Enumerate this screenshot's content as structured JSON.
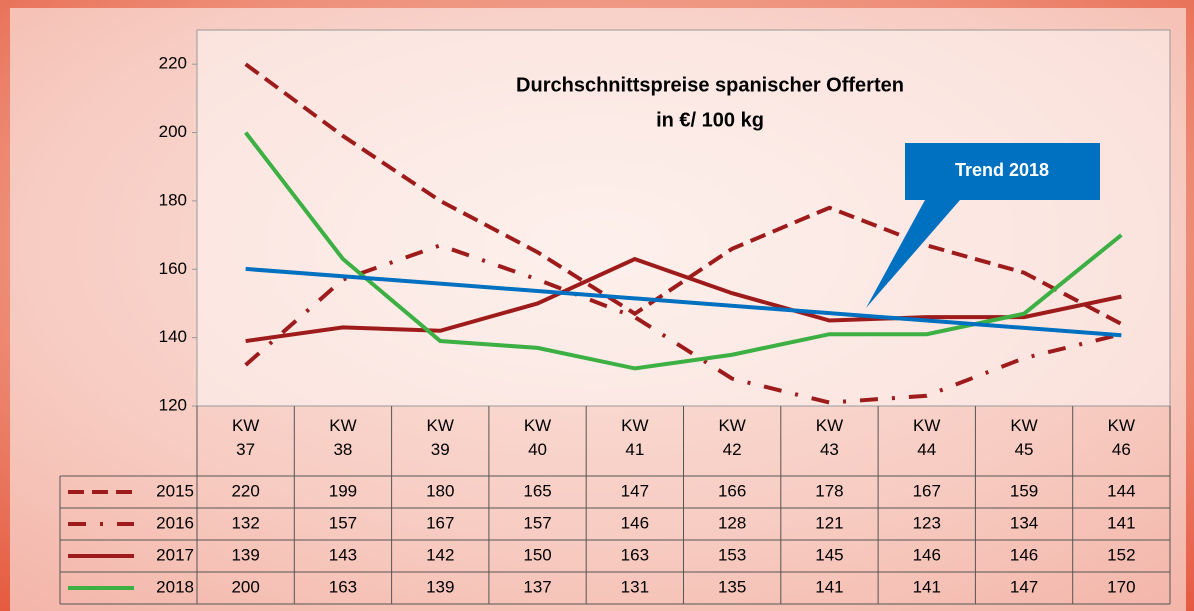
{
  "chart_data": {
    "type": "line",
    "title": "Durchschnittspreise spanischer Offerten",
    "subtitle": "in €/ 100 kg",
    "categories": [
      "KW 37",
      "KW 38",
      "KW 39",
      "KW 40",
      "KW 41",
      "KW 42",
      "KW 43",
      "KW 44",
      "KW 45",
      "KW 46"
    ],
    "series": [
      {
        "name": "2015",
        "color": "#9e1b1b",
        "dash": "dashed",
        "values": [
          220,
          199,
          180,
          165,
          147,
          166,
          178,
          167,
          159,
          144
        ]
      },
      {
        "name": "2016",
        "color": "#9e1b1b",
        "dash": "dashdot",
        "values": [
          132,
          157,
          167,
          157,
          146,
          128,
          121,
          123,
          134,
          141
        ]
      },
      {
        "name": "2017",
        "color": "#9e1b1b",
        "dash": "solid",
        "values": [
          139,
          143,
          142,
          150,
          163,
          153,
          145,
          146,
          146,
          152
        ]
      },
      {
        "name": "2018",
        "color": "#3cb043",
        "dash": "solid",
        "values": [
          200,
          163,
          139,
          137,
          131,
          135,
          141,
          141,
          147,
          170
        ]
      }
    ],
    "trend": {
      "name": "Trend 2018",
      "color": "#0070c0",
      "values": [
        160.1,
        140.7
      ]
    },
    "ylim": [
      120,
      230
    ],
    "yticks": [
      120,
      140,
      160,
      180,
      200,
      220
    ],
    "grid": false
  }
}
